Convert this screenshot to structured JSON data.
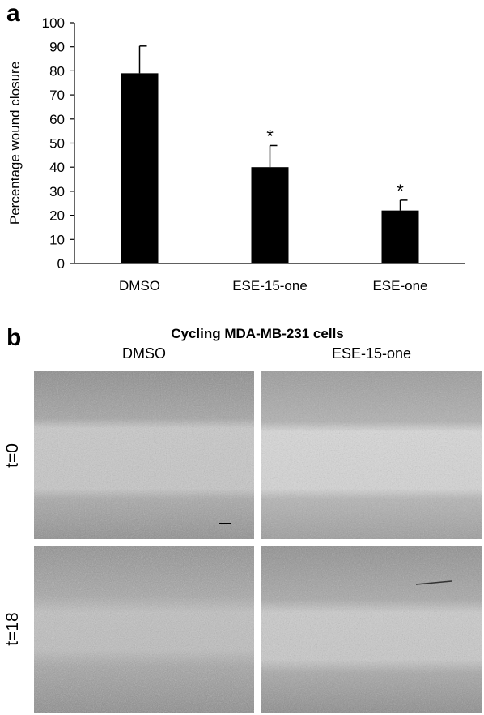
{
  "panel_a": {
    "letter": "a"
  },
  "panel_b": {
    "letter": "b",
    "title": "Cycling MDA-MB-231 cells",
    "columns": [
      "DMSO",
      "ESE-15-one"
    ],
    "rows": [
      "t=0",
      "t=18"
    ]
  },
  "chart_data": {
    "type": "bar",
    "title": "",
    "xlabel": "",
    "ylabel": "Percentage wound closure",
    "categories": [
      "DMSO",
      "ESE-15-one",
      "ESE-one"
    ],
    "values": [
      79,
      40,
      22
    ],
    "error_bars": [
      11.3,
      9,
      4.3
    ],
    "significance": [
      "",
      "*",
      "*"
    ],
    "ylim": [
      0,
      100
    ],
    "yticks": [
      0,
      10,
      20,
      30,
      40,
      50,
      60,
      70,
      80,
      90,
      100
    ],
    "bar_color": "#000000",
    "grid": false,
    "legend": false
  }
}
